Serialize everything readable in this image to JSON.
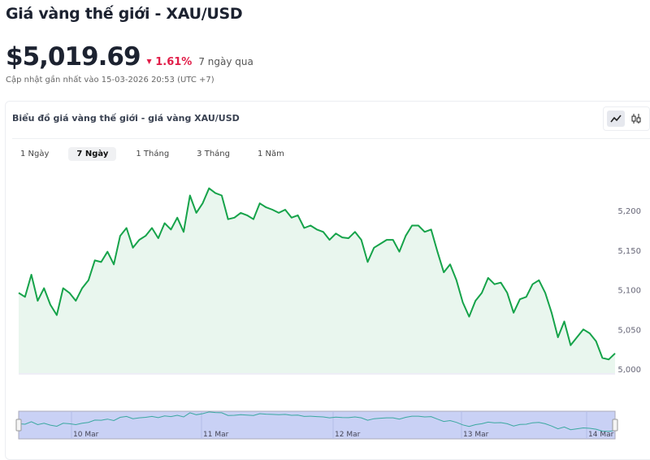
{
  "header": {
    "title": "Giá vàng thế giới - XAU/USD",
    "price": "$5,019.69",
    "change": "1.61%",
    "period": "7 ngày qua",
    "updated": "Cập nhật gần nhất vào 15-03-2026 20:53 (UTC +7)"
  },
  "card": {
    "title": "Biểu đồ giá vàng thế giới - giá vàng XAU/USD",
    "chart_types": [
      "line-chart-icon",
      "candlestick-icon"
    ],
    "active_type": "line"
  },
  "tabs": [
    {
      "label": "1 Ngày"
    },
    {
      "label": "7 Ngày",
      "active": true
    },
    {
      "label": "1 Tháng"
    },
    {
      "label": "3 Tháng"
    },
    {
      "label": "1 Năm"
    }
  ],
  "colors": {
    "line": "#16a34a",
    "fill": "#e9f6ee",
    "down": "#e11d48",
    "navigator_fill": "#c9d1f5",
    "navigator_line": "#3ba8a0"
  },
  "chart_data": {
    "type": "area",
    "ylim": [
      5000,
      5235
    ],
    "yticks": [
      "5,000",
      "5,050",
      "5,100",
      "5,150",
      "5,200"
    ],
    "ytick_values": [
      5000,
      5050,
      5100,
      5150,
      5200
    ],
    "navigator_labels": [
      "10 Mar",
      "11 Mar",
      "12 Mar",
      "13 Mar",
      "14 Mar"
    ],
    "values": [
      5096,
      5091,
      5119,
      5086,
      5102,
      5081,
      5068,
      5102,
      5096,
      5086,
      5102,
      5112,
      5137,
      5135,
      5148,
      5132,
      5168,
      5178,
      5153,
      5163,
      5168,
      5178,
      5165,
      5184,
      5176,
      5191,
      5173,
      5219,
      5197,
      5209,
      5228,
      5222,
      5219,
      5189,
      5191,
      5197,
      5194,
      5189,
      5209,
      5204,
      5201,
      5197,
      5201,
      5191,
      5194,
      5178,
      5181,
      5176,
      5173,
      5163,
      5171,
      5166,
      5165,
      5173,
      5163,
      5135,
      5153,
      5158,
      5163,
      5163,
      5148,
      5168,
      5181,
      5181,
      5173,
      5176,
      5148,
      5122,
      5132,
      5112,
      5084,
      5066,
      5086,
      5096,
      5115,
      5107,
      5109,
      5096,
      5071,
      5088,
      5091,
      5107,
      5112,
      5096,
      5071,
      5040,
      5060,
      5030,
      5040,
      5050,
      5045,
      5035,
      5014,
      5012,
      5019.69
    ]
  }
}
